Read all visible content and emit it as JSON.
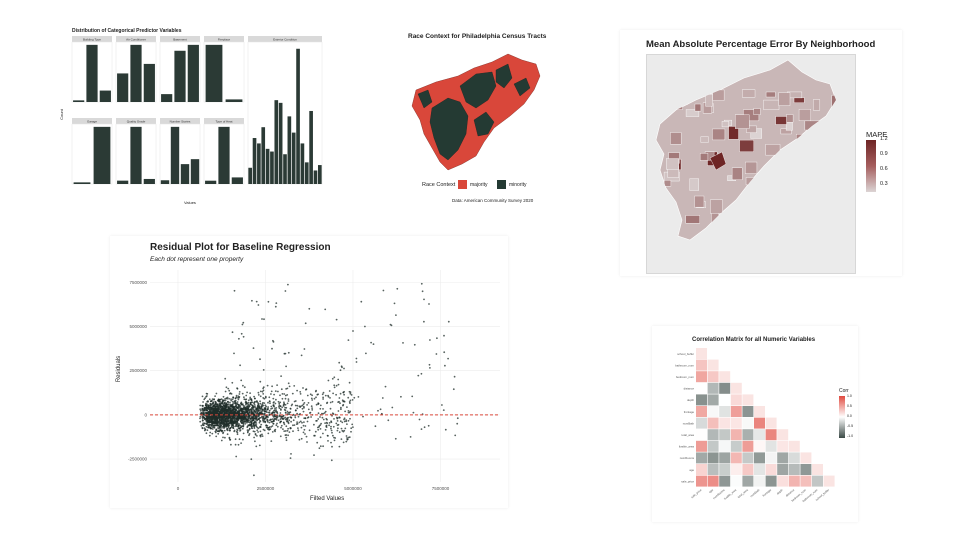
{
  "chart_data": [
    {
      "type": "bar",
      "title": "Distribution of Categorical Predictor Variables",
      "xlabel": "Values",
      "ylabel": "Count",
      "color": "#2b3a35",
      "facets": [
        {
          "name": "Building Type",
          "values": [
            2,
            70,
            14
          ]
        },
        {
          "name": "Air Conditioner",
          "values": [
            30,
            60,
            40
          ]
        },
        {
          "name": "Basement",
          "values": [
            8,
            52,
            58
          ]
        },
        {
          "name": "Fireplace",
          "values": [
            66,
            3
          ]
        },
        {
          "name": "Garage",
          "values": [
            2,
            70
          ]
        },
        {
          "name": "Quality Grade",
          "values": [
            4,
            68,
            6
          ]
        },
        {
          "name": "Number Stories",
          "values": [
            3,
            46,
            16,
            20
          ]
        },
        {
          "name": "Type of Heat",
          "values": [
            3,
            52,
            6
          ]
        },
        {
          "name": "Exterior Condition",
          "values": [
            12,
            34,
            30,
            42,
            26,
            24,
            62,
            60,
            22,
            50,
            38,
            100,
            30,
            16,
            54,
            10,
            14
          ]
        }
      ]
    },
    {
      "type": "map",
      "title": "Race Context for Philadelphia Census Tracts",
      "legend_title": "Race Context",
      "categories": [
        "majority",
        "minority"
      ],
      "colors": {
        "majority": "#d9473a",
        "minority": "#243a33"
      },
      "caption": "Data: American Community Survey 2020"
    },
    {
      "type": "map",
      "title": "Mean Absolute Percentage Error By Neighborhood",
      "legend_title": "MAPE",
      "legend_ticks": [
        "1.2",
        "0.9",
        "0.6",
        "0.3"
      ],
      "color_low": "#dcd4d4",
      "color_high": "#6e2525"
    },
    {
      "type": "scatter",
      "title": "Residual Plot for Baseline Regression",
      "subtitle": "Each dot represent one property",
      "xlabel": "Filted Values",
      "ylabel": "Residuals",
      "x_ticks": [
        "0",
        "2500000",
        "5000000",
        "7500000"
      ],
      "y_ticks": [
        "7500000",
        "5000000",
        "2500000",
        "0",
        "-2500000"
      ],
      "xlim": [
        -800000,
        9200000
      ],
      "ylim": [
        -3800000,
        8200000
      ],
      "reference_line": 0,
      "point_color": "#1f2e2a",
      "line_color": "#d9473a"
    },
    {
      "type": "heatmap",
      "title": "Correlation Matrix for all Numeric Variables",
      "legend_title": "Corr",
      "legend_ticks": [
        "1.0",
        "0.5",
        "0.0",
        "-0.5",
        "-1.0"
      ],
      "variables": [
        "sale_price",
        "age",
        "numRooms",
        "livable_area",
        "total_area",
        "numBath",
        "frontage",
        "depth",
        "distance",
        "bedroom_num",
        "bathroom_num",
        "school_buffer"
      ],
      "color_pos": "#e04a3f",
      "color_neg": "#3b4a46",
      "color_zero": "#ffffff"
    }
  ]
}
